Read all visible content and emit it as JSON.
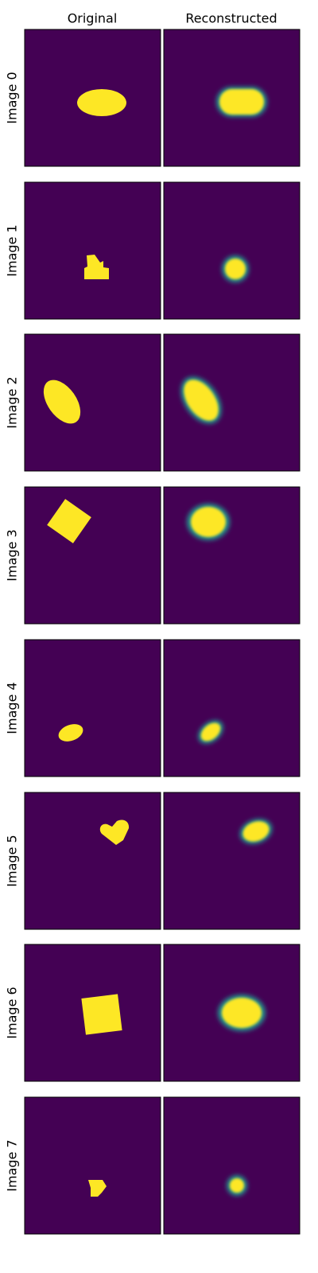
{
  "columns": [
    "Original",
    "Reconstructed"
  ],
  "rows": [
    "Image 0",
    "Image 1",
    "Image 2",
    "Image 3",
    "Image 4",
    "Image 5",
    "Image 6",
    "Image 7"
  ]
}
